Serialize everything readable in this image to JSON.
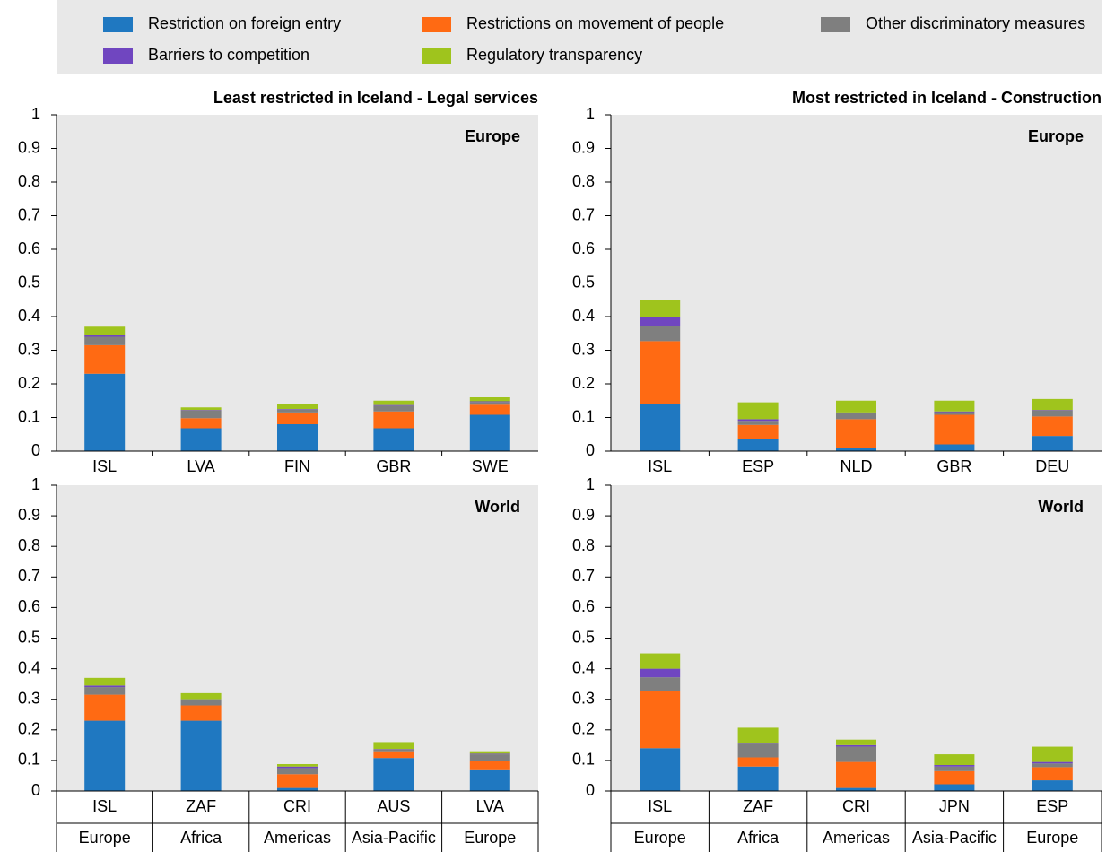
{
  "legend": {
    "items": [
      {
        "name": "Restriction on foreign entry",
        "color": "#1f78c1"
      },
      {
        "name": "Restrictions on movement of people",
        "color": "#ff6a13"
      },
      {
        "name": "Other discriminatory measures",
        "color": "#7f7f7f"
      },
      {
        "name": "Barriers to competition",
        "color": "#7046c0"
      },
      {
        "name": "Regulatory transparency",
        "color": "#9fc41d"
      }
    ]
  },
  "chart_data": [
    {
      "type": "bar",
      "stacked": true,
      "subtitle": "Least restricted in Iceland - Legal services",
      "panel_label": "Europe",
      "categories": [
        "ISL",
        "LVA",
        "FIN",
        "GBR",
        "SWE"
      ],
      "series": [
        {
          "values": [
            0.23,
            0.068,
            0.08,
            0.068,
            0.108
          ]
        },
        {
          "values": [
            0.085,
            0.03,
            0.035,
            0.05,
            0.03
          ]
        },
        {
          "values": [
            0.025,
            0.022,
            0.008,
            0.017,
            0.008
          ]
        },
        {
          "values": [
            0.005,
            0.002,
            0.002,
            0.002,
            0.002
          ]
        },
        {
          "values": [
            0.025,
            0.008,
            0.015,
            0.013,
            0.012
          ]
        }
      ],
      "ylim": [
        0,
        1
      ],
      "yticks": [
        0,
        0.1,
        0.2,
        0.3,
        0.4,
        0.5,
        0.6,
        0.7,
        0.8,
        0.9,
        1
      ]
    },
    {
      "type": "bar",
      "stacked": true,
      "subtitle": "Most restricted in Iceland - Construction",
      "panel_label": "Europe",
      "categories": [
        "ISL",
        "ESP",
        "NLD",
        "GBR",
        "DEU"
      ],
      "series": [
        {
          "values": [
            0.14,
            0.035,
            0.01,
            0.02,
            0.045
          ]
        },
        {
          "values": [
            0.187,
            0.043,
            0.085,
            0.088,
            0.058
          ]
        },
        {
          "values": [
            0.045,
            0.012,
            0.018,
            0.008,
            0.017
          ]
        },
        {
          "values": [
            0.028,
            0.005,
            0.002,
            0.002,
            0.002
          ]
        },
        {
          "values": [
            0.05,
            0.05,
            0.035,
            0.032,
            0.033
          ]
        }
      ],
      "ylim": [
        0,
        1
      ],
      "yticks": [
        0,
        0.1,
        0.2,
        0.3,
        0.4,
        0.5,
        0.6,
        0.7,
        0.8,
        0.9,
        1
      ]
    },
    {
      "type": "bar",
      "stacked": true,
      "panel_label": "World",
      "categories": [
        "ISL",
        "ZAF",
        "CRI",
        "AUS",
        "LVA"
      ],
      "groups": [
        "Europe",
        "Africa",
        "Americas",
        "Asia-Pacific",
        "Europe"
      ],
      "series": [
        {
          "values": [
            0.23,
            0.23,
            0.01,
            0.108,
            0.068
          ]
        },
        {
          "values": [
            0.085,
            0.05,
            0.045,
            0.022,
            0.03
          ]
        },
        {
          "values": [
            0.025,
            0.017,
            0.02,
            0.005,
            0.022
          ]
        },
        {
          "values": [
            0.005,
            0.003,
            0.005,
            0.002,
            0.002
          ]
        },
        {
          "values": [
            0.025,
            0.02,
            0.008,
            0.023,
            0.008
          ]
        }
      ],
      "ylim": [
        0,
        1
      ],
      "yticks": [
        0,
        0.1,
        0.2,
        0.3,
        0.4,
        0.5,
        0.6,
        0.7,
        0.8,
        0.9,
        1
      ]
    },
    {
      "type": "bar",
      "stacked": true,
      "panel_label": "World",
      "categories": [
        "ISL",
        "ZAF",
        "CRI",
        "JPN",
        "ESP"
      ],
      "groups": [
        "Europe",
        "Africa",
        "Americas",
        "Asia-Pacific",
        "Europe"
      ],
      "series": [
        {
          "values": [
            0.14,
            0.08,
            0.01,
            0.022,
            0.035
          ]
        },
        {
          "values": [
            0.187,
            0.03,
            0.085,
            0.043,
            0.043
          ]
        },
        {
          "values": [
            0.045,
            0.045,
            0.05,
            0.015,
            0.012
          ]
        },
        {
          "values": [
            0.028,
            0.002,
            0.005,
            0.005,
            0.005
          ]
        },
        {
          "values": [
            0.05,
            0.05,
            0.018,
            0.035,
            0.05
          ]
        }
      ],
      "ylim": [
        0,
        1
      ],
      "yticks": [
        0,
        0.1,
        0.2,
        0.3,
        0.4,
        0.5,
        0.6,
        0.7,
        0.8,
        0.9,
        1
      ]
    }
  ]
}
